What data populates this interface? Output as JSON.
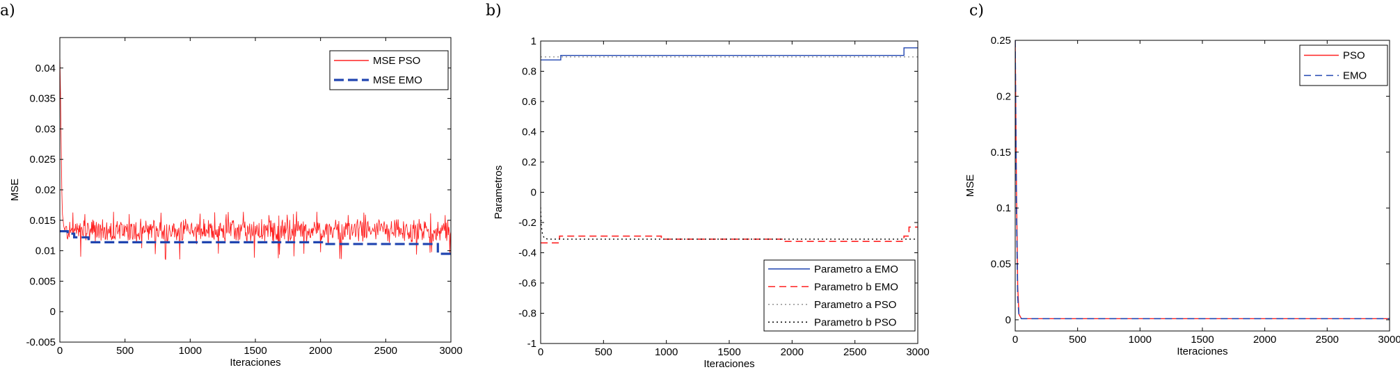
{
  "chart_data": [
    {
      "panel": "a)",
      "type": "line",
      "title": "",
      "xlabel": "Iteraciones",
      "ylabel": "MSE",
      "xlim": [
        0,
        3000
      ],
      "ylim": [
        -0.005,
        0.045
      ],
      "xticks": [
        0,
        500,
        1000,
        1500,
        2000,
        2500,
        3000
      ],
      "yticks": [
        -0.005,
        0,
        0.005,
        0.01,
        0.015,
        0.02,
        0.025,
        0.03,
        0.035,
        0.04
      ],
      "ytick_labels": [
        "-0.005",
        "0",
        "0.005",
        "0.01",
        "0.015",
        "0.02",
        "0.025",
        "0.03",
        "0.035",
        "0.04"
      ],
      "grid": false,
      "legend_position": "top-right",
      "series": [
        {
          "name": "MSE PSO",
          "style": "solid",
          "color": "#ff2020",
          "noise": {
            "x_start": 40,
            "x_end": 3000,
            "step": 4,
            "center": 0.0132,
            "amplitude": 0.0022,
            "min": 0.0085,
            "max": 0.0165
          },
          "x": [
            0,
            5,
            10,
            15,
            20,
            30,
            40
          ],
          "y": [
            0.042,
            0.036,
            0.028,
            0.02,
            0.016,
            0.014,
            0.0132
          ]
        },
        {
          "name": "MSE EMO",
          "style": "dashed",
          "color": "#2045b0",
          "x": [
            0,
            60,
            60,
            110,
            110,
            220,
            220,
            2030,
            2030,
            2900,
            2900,
            3000
          ],
          "y": [
            0.0132,
            0.0132,
            0.0128,
            0.0128,
            0.0122,
            0.0122,
            0.0114,
            0.0114,
            0.0111,
            0.0111,
            0.0095,
            0.0095
          ]
        }
      ]
    },
    {
      "panel": "b)",
      "type": "line",
      "title": "",
      "xlabel": "Iteraciones",
      "ylabel": "Parametros",
      "xlim": [
        0,
        3000
      ],
      "ylim": [
        -1,
        1
      ],
      "xticks": [
        0,
        500,
        1000,
        1500,
        2000,
        2500,
        3000
      ],
      "yticks": [
        -1,
        -0.8,
        -0.6,
        -0.4,
        -0.2,
        0,
        0.2,
        0.4,
        0.6,
        0.8,
        1
      ],
      "ytick_labels": [
        "-1",
        "-0.8",
        "-0.6",
        "-0.4",
        "-0.2",
        "0",
        "0.2",
        "0.4",
        "0.6",
        "0.8",
        "1"
      ],
      "grid": false,
      "legend_position": "bottom-right",
      "series": [
        {
          "name": "Parametro a EMO",
          "style": "solid",
          "color": "#2045b0",
          "x": [
            0,
            160,
            160,
            2890,
            2890,
            3000
          ],
          "y": [
            0.875,
            0.875,
            0.905,
            0.905,
            0.955,
            0.955
          ]
        },
        {
          "name": "Parametro b EMO",
          "style": "dashed",
          "color": "#ff2020",
          "x": [
            0,
            150,
            150,
            960,
            960,
            1920,
            1920,
            2890,
            2890,
            2930,
            2930,
            3000
          ],
          "y": [
            -0.335,
            -0.335,
            -0.29,
            -0.29,
            -0.31,
            -0.31,
            -0.325,
            -0.325,
            -0.29,
            -0.29,
            -0.23,
            -0.23
          ]
        },
        {
          "name": "Parametro a PSO",
          "style": "dotted",
          "color": "#909090",
          "x": [
            0,
            3000
          ],
          "y": [
            0.895,
            0.895
          ]
        },
        {
          "name": "Parametro b PSO",
          "style": "dotted",
          "color": "#000000",
          "x": [
            0,
            5,
            15,
            30,
            60,
            3000
          ],
          "y": [
            -0.1,
            -0.22,
            -0.28,
            -0.305,
            -0.31,
            -0.31
          ]
        }
      ]
    },
    {
      "panel": "c)",
      "type": "line",
      "title": "",
      "xlabel": "Iteraciones",
      "ylabel": "MSE",
      "xlim": [
        0,
        3000
      ],
      "ylim": [
        -0.01,
        0.25
      ],
      "xticks": [
        0,
        500,
        1000,
        1500,
        2000,
        2500,
        3000
      ],
      "yticks": [
        0,
        0.05,
        0.1,
        0.15,
        0.2,
        0.25
      ],
      "ytick_labels": [
        "0",
        "0.05",
        "0.1",
        "0.15",
        "0.2",
        "0.25"
      ],
      "grid": false,
      "legend_position": "top-right",
      "series": [
        {
          "name": "PSO",
          "style": "solid",
          "color": "#ff2020",
          "x": [
            0,
            10,
            20,
            30,
            50,
            3000
          ],
          "y": [
            0.25,
            0.12,
            0.03,
            0.005,
            0.001,
            0.001
          ]
        },
        {
          "name": "EMO",
          "style": "dashed",
          "color": "#2045b0",
          "x": [
            0,
            10,
            20,
            30,
            50,
            3000
          ],
          "y": [
            0.25,
            0.1,
            0.02,
            0.004,
            0.001,
            0.001
          ]
        }
      ]
    }
  ]
}
